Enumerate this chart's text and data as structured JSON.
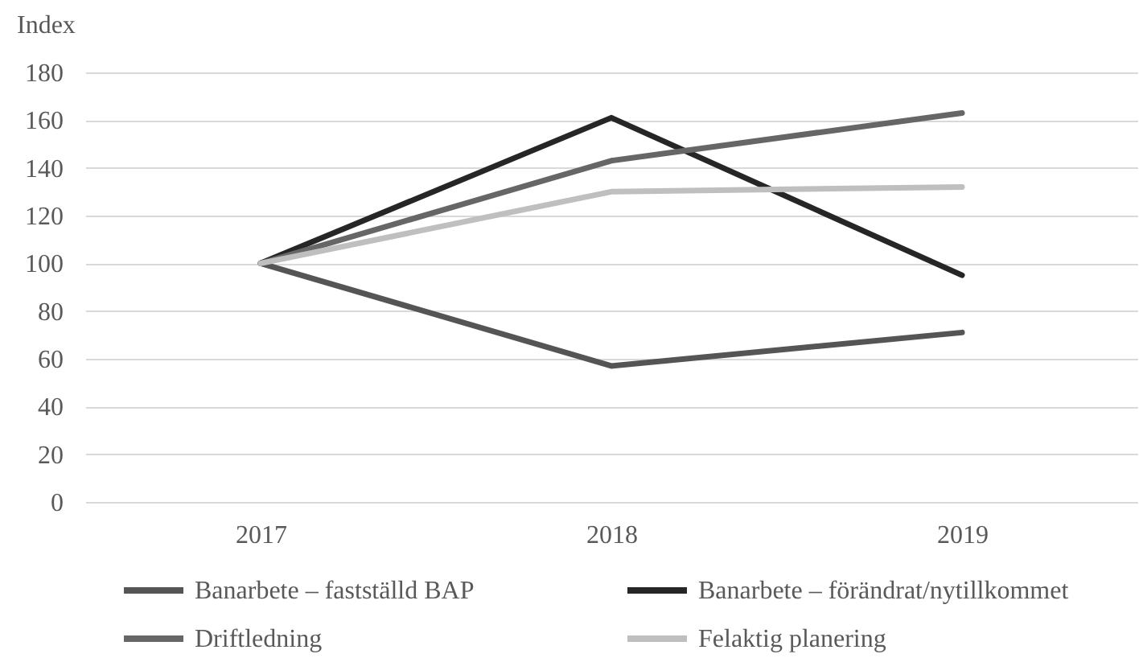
{
  "chart_data": {
    "type": "line",
    "ylabel": "Index",
    "categories": [
      "2017",
      "2018",
      "2019"
    ],
    "series": [
      {
        "name": "Banarbete – fastställd BAP",
        "color": "#555555",
        "values": [
          100,
          57,
          71
        ]
      },
      {
        "name": "Banarbete – förändrat/nytillkommet",
        "color": "#262626",
        "values": [
          100,
          161,
          95
        ]
      },
      {
        "name": "Driftledning",
        "color": "#666666",
        "values": [
          100,
          143,
          163
        ]
      },
      {
        "name": "Felaktig planering",
        "color": "#bfbfbf",
        "values": [
          100,
          130,
          132
        ]
      }
    ],
    "ylim": [
      0,
      180
    ],
    "yticks": [
      0,
      20,
      40,
      60,
      80,
      100,
      120,
      140,
      160,
      180
    ],
    "grid": "y",
    "legend": "bottom"
  }
}
